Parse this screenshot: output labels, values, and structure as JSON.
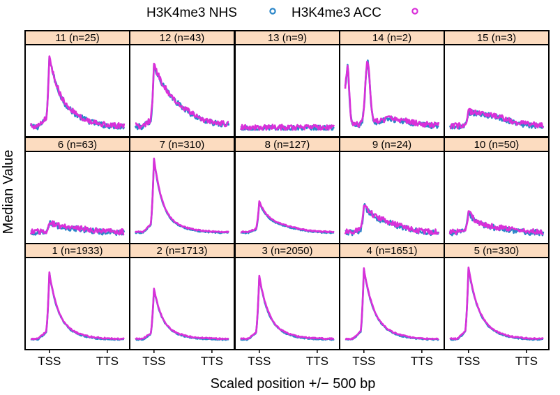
{
  "chart_data": {
    "type": "line",
    "x_ticks": [
      "TSS",
      "TTS"
    ],
    "xlabel": "Scaled position +/− 500 bp",
    "ylabel": "Median Value",
    "legend": {
      "placement": "top",
      "entries": [
        {
          "name": "H3K4me3 NHS",
          "color": "#2b86c8"
        },
        {
          "name": "H3K4me3 ACC",
          "color": "#d930d9"
        }
      ]
    },
    "x_domain": [
      0,
      1
    ],
    "y_domain": [
      0,
      1
    ],
    "panels": [
      {
        "label": "11 (n=25)",
        "peak": 0.92,
        "base": 0.04,
        "decay": 0.13,
        "tail": 0.06
      },
      {
        "label": "12 (n=43)",
        "peak": 0.8,
        "base": 0.04,
        "decay": 0.22,
        "tail": 0.06
      },
      {
        "label": "13 (n=9)",
        "peak": 0.02,
        "base": 0.02,
        "decay": 0.2,
        "tail": 0.0
      },
      {
        "label": "14 (n=2)",
        "peak": 0.78,
        "base": 0.05,
        "decay": 0.05,
        "tail": 0.1
      },
      {
        "label": "15 (n=3)",
        "peak": 0.2,
        "base": 0.04,
        "decay": 0.25,
        "tail": 0.08
      },
      {
        "label": "6 (n=63)",
        "peak": 0.17,
        "base": 0.05,
        "decay": 0.12,
        "tail": 0.04
      },
      {
        "label": "7 (n=310)",
        "peak": 0.98,
        "base": 0.05,
        "decay": 0.1,
        "tail": 0.03
      },
      {
        "label": "8 (n=127)",
        "peak": 0.42,
        "base": 0.05,
        "decay": 0.12,
        "tail": 0.05
      },
      {
        "label": "9 (n=24)",
        "peak": 0.38,
        "base": 0.05,
        "decay": 0.14,
        "tail": 0.08
      },
      {
        "label": "10 (n=50)",
        "peak": 0.3,
        "base": 0.05,
        "decay": 0.1,
        "tail": 0.05
      },
      {
        "label": "1 (n=1933)",
        "peak": 0.88,
        "base": 0.04,
        "decay": 0.11,
        "tail": 0.02
      },
      {
        "label": "2 (n=1713)",
        "peak": 0.68,
        "base": 0.04,
        "decay": 0.1,
        "tail": 0.02
      },
      {
        "label": "3 (n=2050)",
        "peak": 0.84,
        "base": 0.04,
        "decay": 0.11,
        "tail": 0.02
      },
      {
        "label": "4 (n=1651)",
        "peak": 0.93,
        "base": 0.04,
        "decay": 0.12,
        "tail": 0.02
      },
      {
        "label": "5 (n=330)",
        "peak": 0.95,
        "base": 0.04,
        "decay": 0.12,
        "tail": 0.02
      }
    ]
  }
}
